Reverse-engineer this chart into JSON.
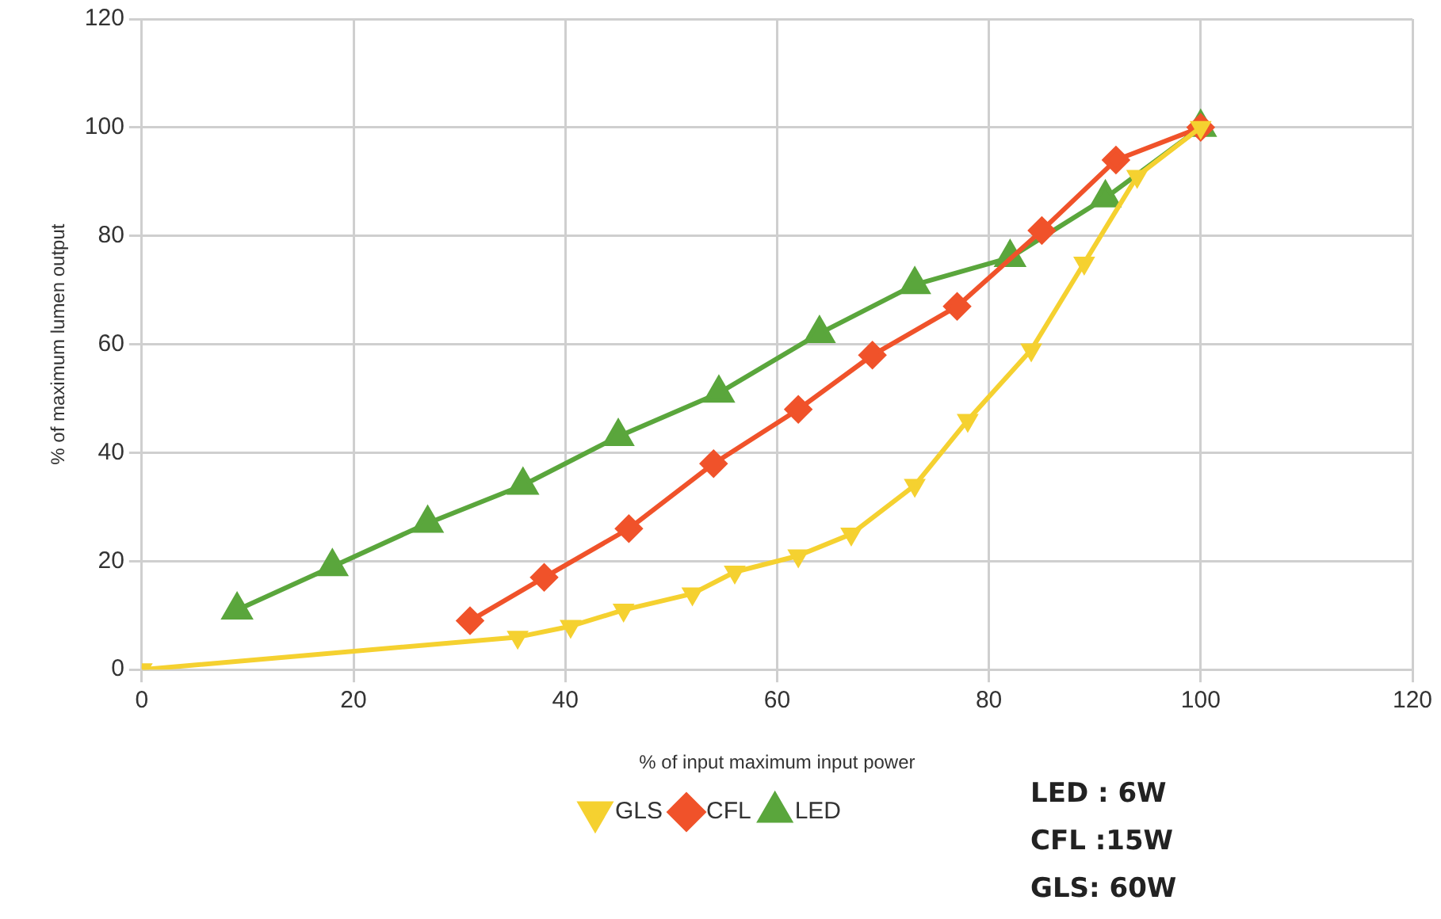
{
  "chart_data": {
    "type": "line",
    "xlabel": "% of input maximum input power",
    "ylabel": "% of maximum lumen output",
    "xlim": [
      0,
      120
    ],
    "xticks": [
      0,
      20,
      40,
      60,
      80,
      100,
      120
    ],
    "ylim": [
      0,
      120
    ],
    "yticks": [
      0,
      20,
      40,
      60,
      80,
      100,
      120
    ],
    "grid": true,
    "legend": "bottom",
    "line_style": "solid",
    "series": [
      {
        "name": "GLS",
        "color": "#f5d130",
        "marker": "triangle-down",
        "x": [
          0,
          35.5,
          40.5,
          45.5,
          52,
          56,
          62,
          67,
          73,
          78,
          84,
          89,
          94,
          100
        ],
        "values": [
          0,
          6,
          8,
          11,
          14,
          18,
          21,
          25,
          34,
          46,
          59,
          75,
          91,
          100
        ]
      },
      {
        "name": "CFL",
        "color": "#f0522a",
        "marker": "diamond",
        "x": [
          31,
          38,
          46,
          54,
          62,
          69,
          77,
          85,
          92,
          100
        ],
        "values": [
          9,
          17,
          26,
          38,
          48,
          58,
          67,
          81,
          94,
          100
        ]
      },
      {
        "name": "LED",
        "color": "#5aa63c",
        "marker": "triangle",
        "x": [
          9,
          18,
          27,
          36,
          45,
          54.5,
          64,
          73,
          82,
          91,
          100
        ],
        "values": [
          11,
          19,
          27,
          34,
          43,
          51,
          62,
          71,
          76,
          87,
          100
        ]
      }
    ],
    "annotations": [
      "LED : 6W",
      "CFL :15W",
      "GLS: 60W"
    ]
  }
}
